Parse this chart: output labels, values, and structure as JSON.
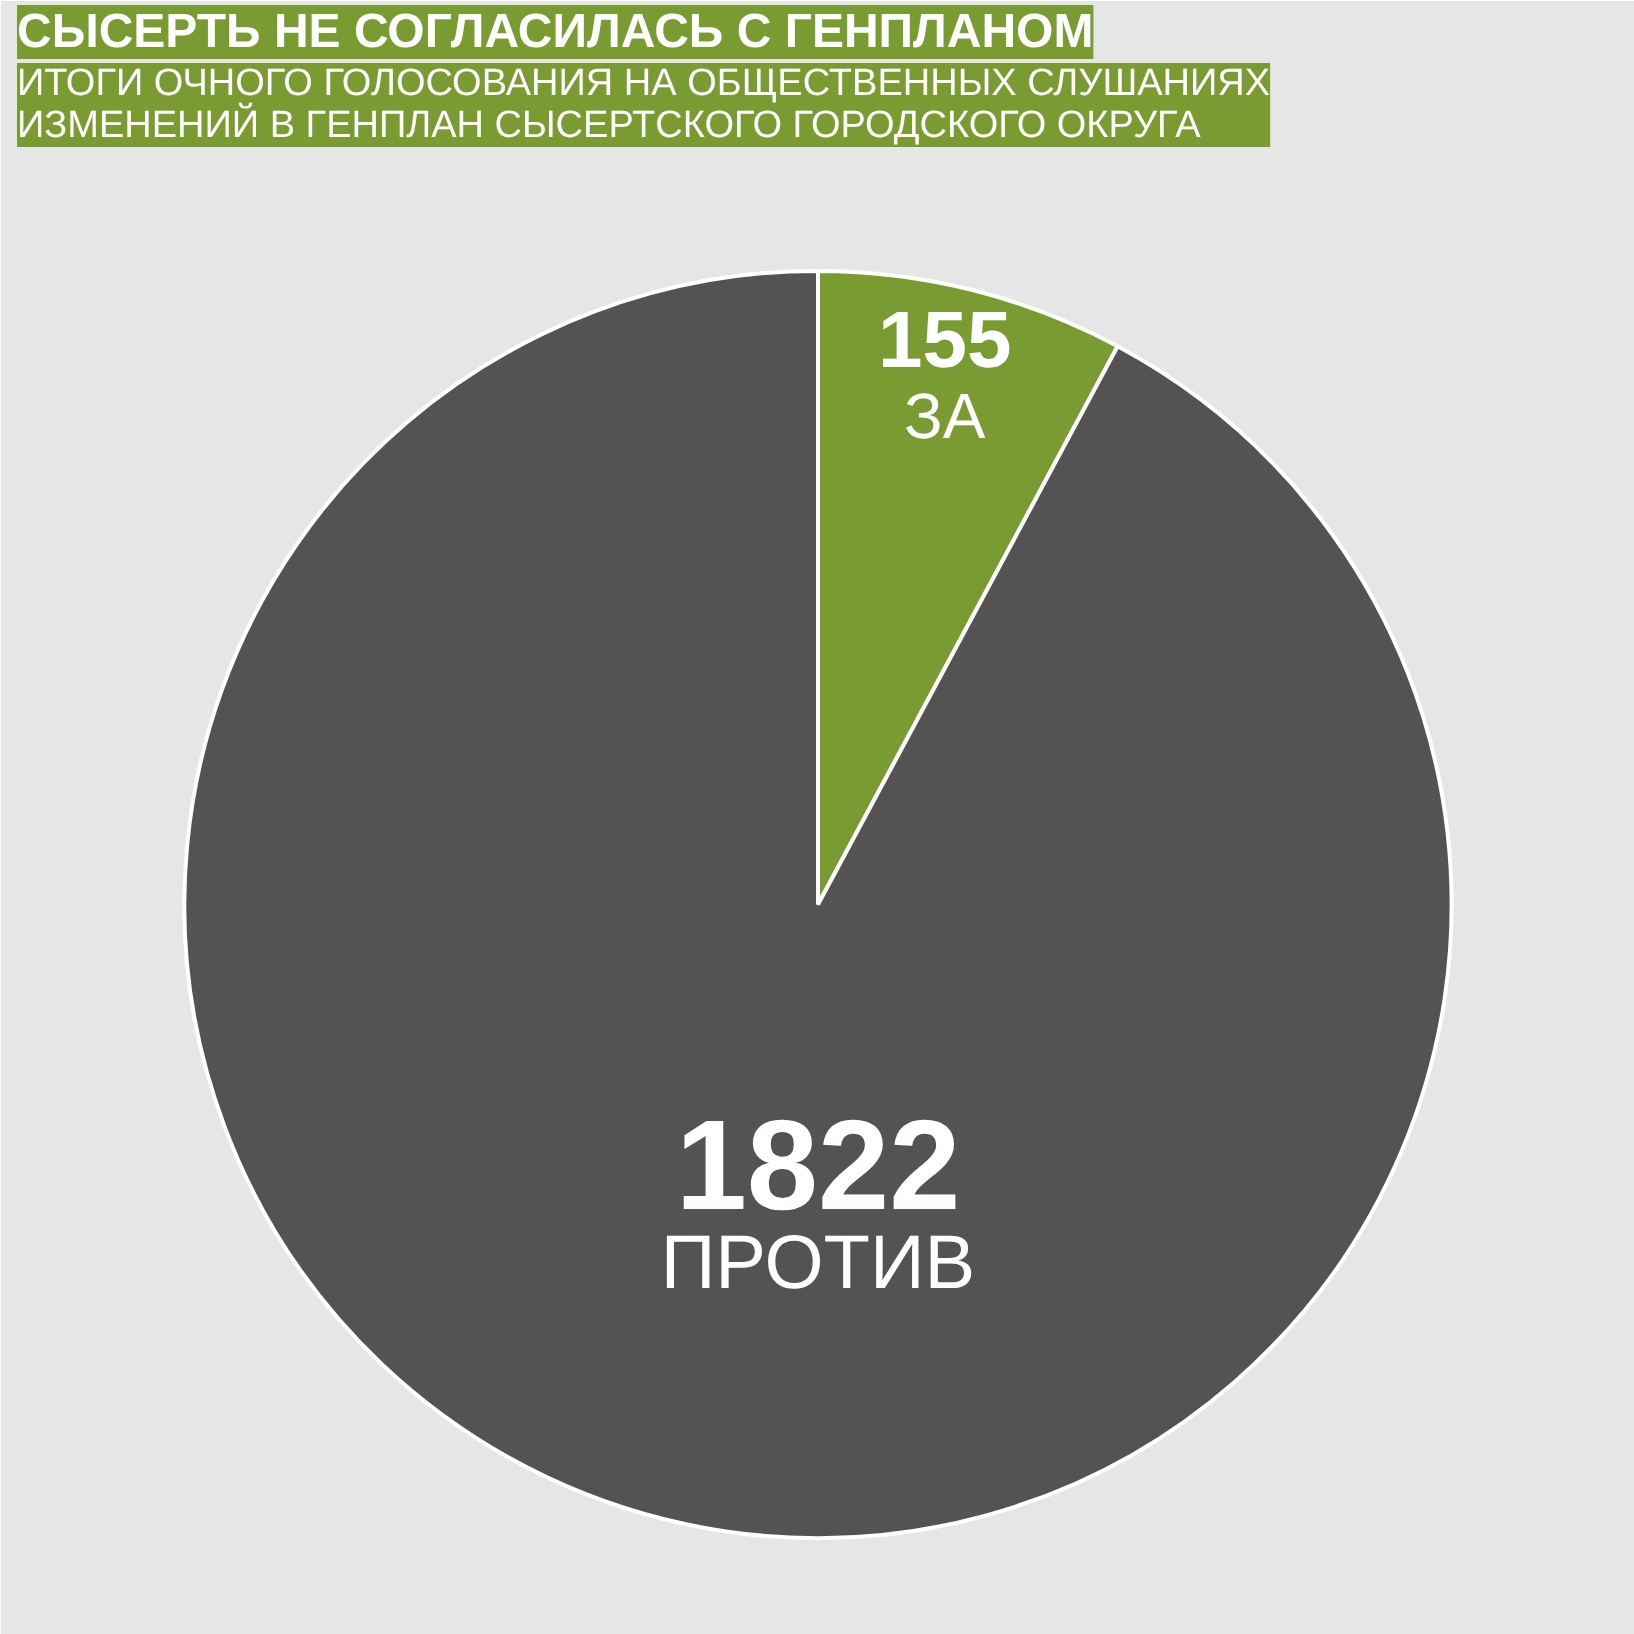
{
  "chart_data": {
    "type": "pie",
    "title": "СЫСЕРТЬ НЕ СОГЛАСИЛАСЬ С ГЕНПЛАНОМ",
    "subtitle": "ИТОГИ ОЧНОГО ГОЛОСОВАНИЯ НА ОБЩЕСТВЕННЫХ СЛУШАНИЯХ\nИЗМЕНЕНИЙ В ГЕНПЛАН СЫСЕРТСКОГО ГОРОДСКОГО ОКРУГА",
    "categories": [
      "ЗА",
      "ПРОТИВ"
    ],
    "values": [
      155,
      1822
    ],
    "colors": [
      "#7a9a32",
      "#545253"
    ],
    "data_labels": true
  }
}
